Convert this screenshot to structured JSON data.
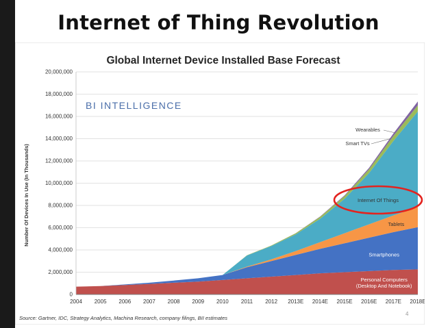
{
  "slide": {
    "title": "Internet of Thing Revolution",
    "page_number": "4"
  },
  "chart_data": {
    "type": "area",
    "stacked": true,
    "title": "Global Internet Device Installed Base Forecast",
    "watermark": "BI INTELLIGENCE",
    "ylabel": "Number Of Devices In Use (In Thousands)",
    "xlabel": "",
    "ylim": [
      0,
      20000000
    ],
    "yticks": [
      "0",
      "2,000,000",
      "4,000,000",
      "6,000,000",
      "8,000,000",
      "10,000,000",
      "12,000,000",
      "14,000,000",
      "16,000,000",
      "18,000,000",
      "20,000,000"
    ],
    "ytick_values": [
      0,
      2000000,
      4000000,
      6000000,
      8000000,
      10000000,
      12000000,
      14000000,
      16000000,
      18000000,
      20000000
    ],
    "categories": [
      "2004",
      "2005",
      "2006",
      "2007",
      "2008",
      "2009",
      "2010",
      "2011",
      "2012",
      "2013E",
      "2014E",
      "2015E",
      "2016E",
      "2017E",
      "2018E"
    ],
    "series": [
      {
        "name": "Personal Computers\n(Desktop And Notebook)",
        "color": "#c0504d",
        "values": [
          700000,
          750000,
          850000,
          950000,
          1050000,
          1150000,
          1300000,
          1450000,
          1600000,
          1750000,
          1900000,
          2000000,
          2100000,
          2200000,
          2250000
        ]
      },
      {
        "name": "Smartphones",
        "color": "#4472c4",
        "values": [
          0,
          0,
          50000,
          100000,
          200000,
          300000,
          450000,
          1000000,
          1400000,
          1800000,
          2200000,
          2600000,
          3000000,
          3400000,
          3800000
        ]
      },
      {
        "name": "Tablets",
        "color": "#f79646",
        "values": [
          0,
          0,
          0,
          0,
          0,
          0,
          0,
          50000,
          150000,
          350000,
          600000,
          900000,
          1200000,
          1500000,
          1800000
        ]
      },
      {
        "name": "Internet Of Things",
        "color": "#4bacc6",
        "values": [
          0,
          0,
          0,
          0,
          0,
          0,
          0,
          1000000,
          1200000,
          1500000,
          2100000,
          3100000,
          4600000,
          6700000,
          8600000
        ]
      },
      {
        "name": "Smart TVs",
        "color": "#9bbb59",
        "values": [
          0,
          0,
          0,
          0,
          0,
          0,
          0,
          20000,
          50000,
          100000,
          180000,
          250000,
          350000,
          450000,
          550000
        ]
      },
      {
        "name": "Wearables",
        "color": "#8064a2",
        "values": [
          0,
          0,
          0,
          0,
          0,
          0,
          0,
          0,
          0,
          10000,
          30000,
          60000,
          120000,
          220000,
          350000
        ]
      }
    ],
    "annotation": {
      "text": "Internet Of Things",
      "highlight_color": "#e3231f"
    },
    "source": "Source: Gartner, IDC, Strategy Analytics, Machina Research, company filings, BII estimates"
  }
}
